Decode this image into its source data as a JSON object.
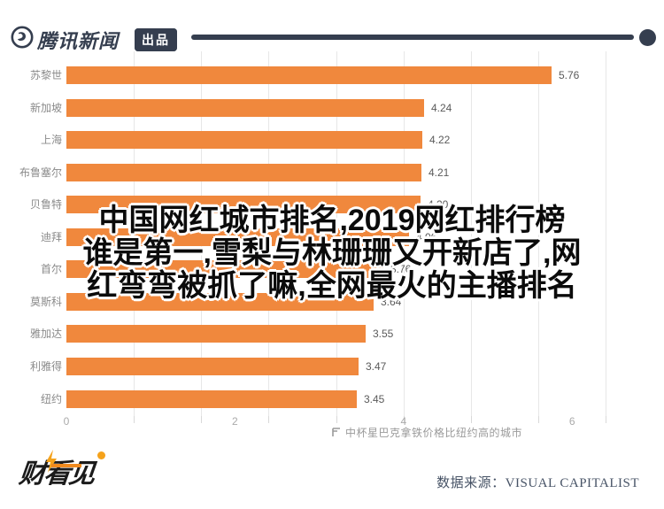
{
  "header": {
    "brand": "腾讯新闻",
    "badge": "出品"
  },
  "overlay_title": {
    "line1": "中国网红城市排名,2019网红排行榜",
    "line2": "谁是第一,雪梨与林珊珊又开新店了,网",
    "line3": "红弯弯被抓了嘛,全网最火的主播排名"
  },
  "chart_data": {
    "type": "bar",
    "orientation": "horizontal",
    "title": "中杯星巴克拿铁价格比纽约高的城市",
    "categories": [
      "苏黎世",
      "新加坡",
      "上海",
      "布鲁塞尔",
      "贝鲁特",
      "迪拜",
      "首尔",
      "莫斯科",
      "雅加达",
      "利雅得",
      "纽约"
    ],
    "values": [
      5.76,
      4.24,
      4.22,
      4.21,
      4.2,
      4.06,
      3.76,
      3.64,
      3.55,
      3.47,
      3.45
    ],
    "value_labels": [
      "5.76",
      "4.24",
      "4.22",
      "4.21",
      "4.20",
      "4.06",
      "3.76",
      "3.64",
      "3.55",
      "3.47",
      "3.45"
    ],
    "xlabel": "",
    "ylabel": "",
    "xlim": [
      0,
      6.77
    ],
    "x_tick_values": [
      0,
      2,
      4,
      6
    ],
    "x_tick_labels": [
      "0",
      "2",
      "4",
      "6"
    ],
    "gridline_values": [
      0.8,
      1.6,
      2.4,
      3.2,
      4.0,
      4.8,
      5.6,
      6.4
    ],
    "grid": "vertical-light",
    "legend": "none",
    "bar_color": "#F0883D"
  },
  "footer": {
    "logo_text": "财看见",
    "source_label": "数据来源：",
    "source_value": "VISUAL CAPITALIST"
  },
  "colors": {
    "brand": "#353E4F",
    "bar": "#F0883D",
    "grid": "#E7E7E7",
    "axis_text": "#AAAAAA",
    "category_text": "#8B8B8B",
    "value_text": "#5A5A5A",
    "caption_text": "#9A9A9A",
    "source_text": "#475366"
  }
}
